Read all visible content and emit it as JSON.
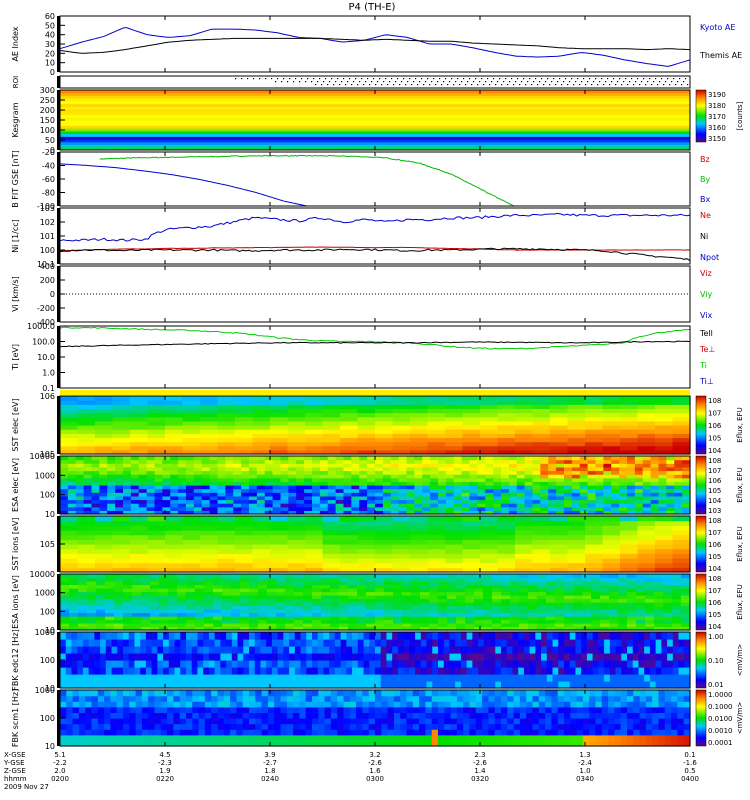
{
  "title": "P4 (TH-E)",
  "footer": {
    "row_labels": [
      "X-GSE",
      "Y-GSE",
      "Z-GSE",
      "hhmm",
      "2009 Nov 27"
    ],
    "ticks": [
      {
        "x": "5.1",
        "y": "-2.2",
        "z": "2.0",
        "t": "0200"
      },
      {
        "x": "4.5",
        "y": "-2.3",
        "z": "1.9",
        "t": "0220"
      },
      {
        "x": "3.9",
        "y": "-2.7",
        "z": "1.8",
        "t": "0240"
      },
      {
        "x": "3.2",
        "y": "-2.6",
        "z": "1.6",
        "t": "0300"
      },
      {
        "x": "2.3",
        "y": "-2.6",
        "z": "1.4",
        "t": "0320"
      },
      {
        "x": "1.3",
        "y": "-2.4",
        "z": "1.0",
        "t": "0340"
      },
      {
        "x": "0.1",
        "y": "-1.6",
        "z": "0.5",
        "t": "0400"
      }
    ]
  },
  "colors": {
    "kyoto": "#0000cc",
    "themis": "#000000",
    "bz": "#cc0000",
    "by": "#00bb00",
    "bx": "#0000cc",
    "tell": "#000000",
    "teperp": "#cc0000",
    "ti": "#00cc00",
    "tiperp": "#0000cc"
  },
  "chart_data": [
    {
      "type": "line",
      "id": "ae",
      "ylabel": "AE Index",
      "ylim": [
        0,
        60
      ],
      "yticks": [
        "0",
        "10",
        "20",
        "30",
        "40",
        "50",
        "60"
      ],
      "series": [
        {
          "name": "Kyoto AE",
          "values": [
            25,
            32,
            38,
            48,
            40,
            37,
            39,
            46,
            46,
            45,
            42,
            37,
            36,
            32,
            34,
            40,
            37,
            30,
            30,
            26,
            21,
            17,
            16,
            17,
            21,
            18,
            13,
            9,
            6,
            13
          ]
        },
        {
          "name": "Themis AE",
          "values": [
            23,
            20,
            21,
            24,
            28,
            32,
            34,
            35,
            36,
            36,
            36,
            36,
            36,
            35,
            34,
            35,
            34,
            33,
            33,
            31,
            30,
            29,
            28,
            26,
            25,
            25,
            25,
            24,
            25,
            24
          ]
        }
      ]
    },
    {
      "type": "scatter",
      "id": "roi",
      "ylabel": "ROI"
    },
    {
      "type": "heatmap",
      "id": "kgm",
      "ylabel": "Kesgram",
      "ylim": [
        0,
        300
      ],
      "yticks": [
        "0",
        "50",
        "100",
        "150",
        "200",
        "250",
        "300"
      ],
      "colorbar": {
        "ticks": [
          "3150",
          "3160",
          "3170",
          "3180",
          "3190"
        ],
        "label": "[counts]"
      }
    },
    {
      "type": "line",
      "id": "bfit",
      "ylabel": "B FIT GSE [nT]",
      "ylim": [
        -100,
        0
      ],
      "yticks": [
        "-100",
        "-80",
        "-60",
        "-40",
        "-20"
      ],
      "series": [
        {
          "name": "Bz",
          "values": []
        },
        {
          "name": "By",
          "values": [
            -13,
            -11,
            -10,
            -9,
            -8,
            -7,
            -7,
            -7,
            -8,
            -11,
            -20,
            -40,
            -70,
            -100
          ]
        },
        {
          "name": "Bx",
          "values": [
            -22,
            -25,
            -29,
            -35,
            -42,
            -51,
            -62,
            -75,
            -91,
            -102
          ]
        }
      ]
    },
    {
      "type": "line",
      "id": "ni",
      "ylabel": "Ni [1/cc]",
      "yticks": [
        "10-1",
        "100",
        "101",
        "102",
        "103"
      ],
      "series": [
        {
          "name": "Ne",
          "values": [
            0.9,
            1.0,
            1.1,
            1.2,
            1.2,
            1.3,
            1.3,
            1.4,
            1.4,
            1.5,
            1.5,
            1.6,
            1.6,
            1.6,
            1.5,
            1.5,
            1.5,
            1.4,
            1.3,
            1.2,
            1.1,
            1.0,
            1.0,
            1.0,
            1.0,
            1.0,
            1.0,
            1.0,
            1.0,
            1.0
          ]
        },
        {
          "name": "Ni",
          "values": [
            5,
            5,
            6,
            5,
            6,
            30,
            40,
            50,
            100,
            200,
            150,
            120,
            200,
            100,
            150,
            100,
            150,
            150,
            200,
            200,
            250,
            300,
            300,
            350,
            300,
            300,
            300,
            300,
            300,
            300
          ]
        },
        {
          "name": "Npot",
          "values": [
            0.9,
            1.0,
            1.0,
            0.9,
            1.0,
            1.0,
            1.0,
            1.0,
            0.9,
            0.9,
            1.0,
            1.0,
            1.0,
            1.1,
            1.1,
            1.0,
            0.9,
            1.0,
            1.0,
            1.1,
            1.2,
            1.2,
            1.2,
            1.1,
            1.0,
            0.9,
            0.6,
            0.4,
            0.3,
            0.2
          ]
        }
      ]
    },
    {
      "type": "line",
      "id": "vi",
      "ylabel": "Vi [km/s]",
      "ylim": [
        -400,
        400
      ],
      "yticks": [
        "-400",
        "-200",
        "0",
        "200",
        "400"
      ],
      "series": [
        {
          "name": "Viz",
          "values": []
        },
        {
          "name": "Viy",
          "values": []
        },
        {
          "name": "Vix",
          "values": []
        }
      ]
    },
    {
      "type": "line",
      "id": "temp",
      "ylabel": "Ti [eV]",
      "yticks": [
        "0.1",
        "1.0",
        "10.0",
        "100.0",
        "1000.0"
      ],
      "series": [
        {
          "name": "Tell",
          "values": [
            100,
            110,
            120,
            130,
            140,
            150,
            160,
            170,
            180,
            190,
            200,
            200,
            200,
            200,
            200,
            200,
            200,
            210,
            220,
            230,
            220,
            220,
            210,
            200,
            200,
            210,
            230,
            250,
            250,
            250
          ]
        },
        {
          "name": "Te⊥",
          "values": []
        },
        {
          "name": "Ti",
          "values": [
            3000,
            3000,
            2800,
            2500,
            2200,
            2000,
            1800,
            1500,
            1200,
            800,
            500,
            350,
            280,
            250,
            250,
            230,
            200,
            150,
            100,
            80,
            70,
            70,
            80,
            100,
            120,
            150,
            200,
            800,
            1500,
            2000
          ]
        },
        {
          "name": "Ti⊥",
          "values": []
        }
      ]
    },
    {
      "type": "heatmap",
      "id": "sste",
      "ylabel": "SST elec [eV]",
      "yticks": [
        "105",
        "106"
      ],
      "colorbar": {
        "ticks": [
          "104",
          "105",
          "106",
          "107",
          "108"
        ],
        "label": "Eflux, EFU"
      }
    },
    {
      "type": "heatmap",
      "id": "esae",
      "ylabel": "ESA elec [eV]",
      "yticks": [
        "10",
        "100",
        "1000",
        "10000"
      ],
      "colorbar": {
        "ticks": [
          "103",
          "104",
          "105",
          "106",
          "107",
          "108"
        ],
        "label": "Eflux, EFU"
      }
    },
    {
      "type": "heatmap",
      "id": "ssti",
      "ylabel": "SST ions [eV]",
      "yticks": [
        "105"
      ],
      "colorbar": {
        "ticks": [
          "104",
          "105",
          "106",
          "107",
          "108"
        ],
        "label": "Eflux, EFU"
      }
    },
    {
      "type": "heatmap",
      "id": "esai",
      "ylabel": "ESA ions [eV]",
      "yticks": [
        "10",
        "100",
        "1000",
        "10000"
      ],
      "colorbar": {
        "ticks": [
          "104",
          "105",
          "106",
          "107",
          "108"
        ],
        "label": "Eflux, EFU"
      }
    },
    {
      "type": "heatmap",
      "id": "fbke",
      "ylabel": "FBK edc12 [Hz]",
      "yticks": [
        "10",
        "100",
        "1000"
      ],
      "colorbar": {
        "ticks": [
          "0.01",
          "0.10",
          "1.00"
        ],
        "label": "<mV/m>"
      }
    },
    {
      "type": "heatmap",
      "id": "fbkb",
      "ylabel": "FBK scm1 [Hz]",
      "yticks": [
        "10",
        "100",
        "1000"
      ],
      "colorbar": {
        "ticks": [
          "0.0001",
          "0.0010",
          "0.0100",
          "0.1000",
          "1.0000"
        ],
        "label": "<mV/m>"
      }
    }
  ]
}
